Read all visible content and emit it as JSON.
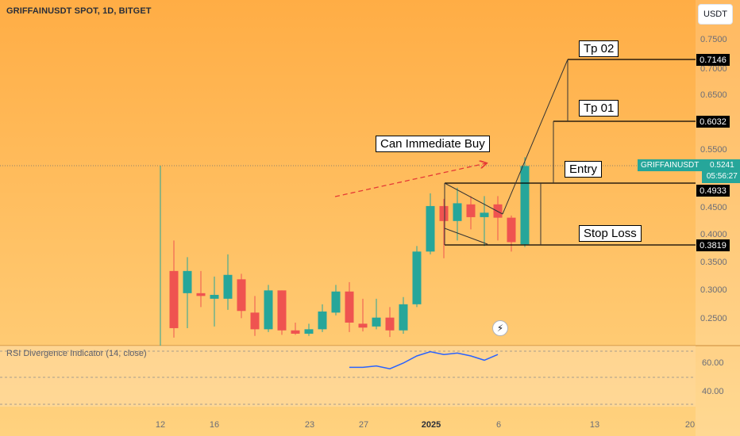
{
  "header": {
    "title": "GRIFFAINUSDT SPOT, 1D, BITGET"
  },
  "currency_button": {
    "label": "USDT"
  },
  "rsi": {
    "title": "RSI Divergence Indicator (14, close)"
  },
  "last_price": {
    "symbol": "GRIFFAINUSDT",
    "price": "0.5241",
    "countdown": "05:56:27"
  },
  "price_boxes": {
    "tp2": "0.7146",
    "tp1": "0.6032",
    "entry": "0.4933",
    "stop": "0.3819"
  },
  "annotations": {
    "buy": "Can Immediate Buy",
    "tp2": "Tp 02",
    "tp1": "Tp 01",
    "entry": "Entry",
    "stop": "Stop Loss"
  },
  "colors": {
    "up": "#26a69a",
    "down": "#ef5350",
    "background_top": "#ffae45",
    "background_bottom": "#ffd07a",
    "rsi_line": "#2962ff"
  },
  "icons": {
    "alert": "lightning-icon"
  },
  "chart_data": {
    "type": "candlestick",
    "title": "GRIFFAINUSDT SPOT, 1D, BITGET",
    "ylim": [
      0.215,
      0.775
    ],
    "y_ticks": [
      "0.7500",
      "0.7000",
      "0.6500",
      "0.5500",
      "0.4500",
      "0.4000",
      "0.3500",
      "0.3000",
      "0.2500"
    ],
    "x_ticks": [
      "12",
      "16",
      "23",
      "27",
      "2025",
      "6",
      "13",
      "20"
    ],
    "candles": [
      {
        "o": 0.335,
        "h": 0.39,
        "l": 0.215,
        "c": 0.232
      },
      {
        "o": 0.295,
        "h": 0.36,
        "l": 0.232,
        "c": 0.335
      },
      {
        "o": 0.295,
        "h": 0.335,
        "l": 0.27,
        "c": 0.29
      },
      {
        "o": 0.285,
        "h": 0.325,
        "l": 0.235,
        "c": 0.292
      },
      {
        "o": 0.285,
        "h": 0.365,
        "l": 0.265,
        "c": 0.328
      },
      {
        "o": 0.32,
        "h": 0.33,
        "l": 0.25,
        "c": 0.263
      },
      {
        "o": 0.26,
        "h": 0.29,
        "l": 0.218,
        "c": 0.23
      },
      {
        "o": 0.23,
        "h": 0.31,
        "l": 0.225,
        "c": 0.3
      },
      {
        "o": 0.3,
        "h": 0.3,
        "l": 0.22,
        "c": 0.228
      },
      {
        "o": 0.228,
        "h": 0.242,
        "l": 0.22,
        "c": 0.222
      },
      {
        "o": 0.222,
        "h": 0.24,
        "l": 0.218,
        "c": 0.23
      },
      {
        "o": 0.23,
        "h": 0.275,
        "l": 0.225,
        "c": 0.262
      },
      {
        "o": 0.26,
        "h": 0.31,
        "l": 0.255,
        "c": 0.298
      },
      {
        "o": 0.298,
        "h": 0.315,
        "l": 0.225,
        "c": 0.242
      },
      {
        "o": 0.24,
        "h": 0.285,
        "l": 0.226,
        "c": 0.233
      },
      {
        "o": 0.235,
        "h": 0.285,
        "l": 0.23,
        "c": 0.251
      },
      {
        "o": 0.251,
        "h": 0.27,
        "l": 0.216,
        "c": 0.228
      },
      {
        "o": 0.228,
        "h": 0.288,
        "l": 0.222,
        "c": 0.275
      },
      {
        "o": 0.275,
        "h": 0.38,
        "l": 0.27,
        "c": 0.37
      },
      {
        "o": 0.37,
        "h": 0.475,
        "l": 0.365,
        "c": 0.452
      },
      {
        "o": 0.452,
        "h": 0.465,
        "l": 0.358,
        "c": 0.425
      },
      {
        "o": 0.425,
        "h": 0.485,
        "l": 0.39,
        "c": 0.457
      },
      {
        "o": 0.455,
        "h": 0.47,
        "l": 0.41,
        "c": 0.432
      },
      {
        "o": 0.432,
        "h": 0.47,
        "l": 0.38,
        "c": 0.44
      },
      {
        "o": 0.455,
        "h": 0.47,
        "l": 0.39,
        "c": 0.431
      },
      {
        "o": 0.431,
        "h": 0.435,
        "l": 0.37,
        "c": 0.387
      },
      {
        "o": 0.383,
        "h": 0.54,
        "l": 0.378,
        "c": 0.5241
      }
    ],
    "levels": {
      "tp2": 0.7146,
      "tp1": 0.6032,
      "entry": 0.4933,
      "stop": 0.3819
    },
    "rsi": {
      "ylim": [
        30,
        75
      ],
      "y_ticks": [
        "60.00",
        "40.00"
      ],
      "upper_band": 70,
      "lower_band": 30,
      "values": [
        57,
        57,
        58,
        56,
        60,
        65,
        68,
        66,
        67,
        65,
        62,
        66
      ]
    }
  }
}
